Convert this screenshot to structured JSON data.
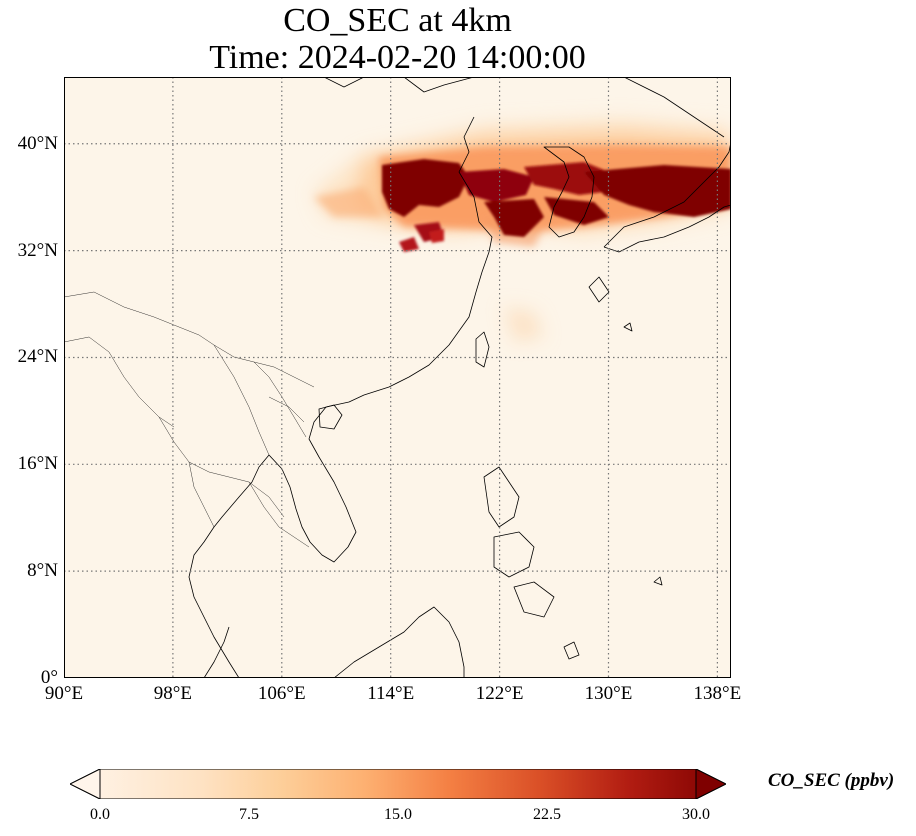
{
  "title": {
    "line1": "CO_SEC at 4km",
    "line2": "Time: 2024-02-20 14:00:00"
  },
  "map": {
    "lon_range": [
      90,
      139
    ],
    "lat_range": [
      0,
      45
    ],
    "lat_ticks": [
      {
        "value": 0,
        "label": "0°"
      },
      {
        "value": 8,
        "label": "8°N"
      },
      {
        "value": 16,
        "label": "16°N"
      },
      {
        "value": 24,
        "label": "24°N"
      },
      {
        "value": 32,
        "label": "32°N"
      },
      {
        "value": 40,
        "label": "40°N"
      }
    ],
    "lon_ticks": [
      {
        "value": 90,
        "label": "90°E"
      },
      {
        "value": 98,
        "label": "98°E"
      },
      {
        "value": 106,
        "label": "106°E"
      },
      {
        "value": 114,
        "label": "114°E"
      },
      {
        "value": 122,
        "label": "122°E"
      },
      {
        "value": 130,
        "label": "130°E"
      },
      {
        "value": 138,
        "label": "138°E"
      }
    ],
    "gridlines": "dotted",
    "background_color": "#fdf5e9",
    "colormap": [
      "#fff5eb",
      "#fdd9ac",
      "#fdab67",
      "#f16913",
      "#c84010",
      "#a50f15",
      "#7f0000"
    ],
    "plume_regions": [
      {
        "name": "north-china-plain",
        "lon": [
          113,
          124
        ],
        "lat": [
          33,
          39
        ],
        "level": "high"
      },
      {
        "name": "korea-japan",
        "lon": [
          124,
          139
        ],
        "lat": [
          34,
          38.5
        ],
        "level": "high"
      },
      {
        "name": "outer-band",
        "lon": [
          110,
          139
        ],
        "lat": [
          31,
          41
        ],
        "level": "moderate"
      }
    ]
  },
  "colorbar": {
    "label": "CO_SEC (ppbv)",
    "min": 0.0,
    "max": 30.0,
    "extend": "both",
    "ticks": [
      "0.0",
      "7.5",
      "15.0",
      "22.5",
      "30.0"
    ]
  }
}
